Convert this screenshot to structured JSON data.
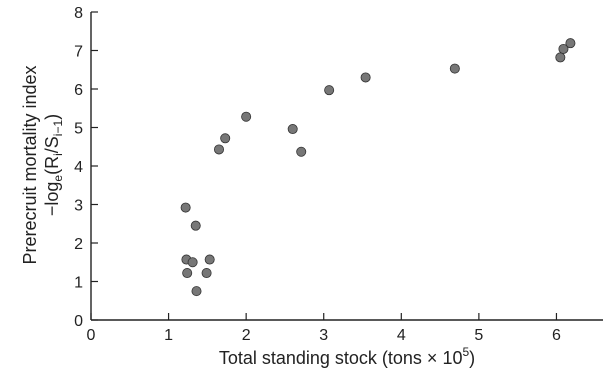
{
  "chart_data": {
    "type": "scatter",
    "title": "",
    "xlabel": "Total standing stock (tons × 10",
    "xlabel_exponent": "5",
    "xlabel_suffix": ")",
    "ylabel_line1": "Prerecruit mortality index",
    "ylabel_line2_prefix": "−log",
    "ylabel_line2_sub_e": "e",
    "ylabel_line2_mid": "(R",
    "ylabel_line2_sub_i": "i",
    "ylabel_line2_slash": "/S",
    "ylabel_line2_sub_i1": "i−1",
    "ylabel_line2_suffix": ")",
    "xlim": [
      0,
      6.6
    ],
    "ylim": [
      0,
      8
    ],
    "xticks": [
      0,
      1,
      2,
      3,
      4,
      5,
      6
    ],
    "yticks": [
      0,
      1,
      2,
      3,
      4,
      5,
      6,
      7,
      8
    ],
    "grid": false,
    "marker_color": "#777777",
    "points": [
      {
        "x": 1.22,
        "y": 2.92
      },
      {
        "x": 1.23,
        "y": 1.57
      },
      {
        "x": 1.24,
        "y": 1.22
      },
      {
        "x": 1.31,
        "y": 1.5
      },
      {
        "x": 1.35,
        "y": 2.45
      },
      {
        "x": 1.36,
        "y": 0.75
      },
      {
        "x": 1.49,
        "y": 1.22
      },
      {
        "x": 1.53,
        "y": 1.57
      },
      {
        "x": 1.65,
        "y": 4.43
      },
      {
        "x": 1.73,
        "y": 4.72
      },
      {
        "x": 2.0,
        "y": 5.28
      },
      {
        "x": 2.6,
        "y": 4.96
      },
      {
        "x": 2.71,
        "y": 4.37
      },
      {
        "x": 3.07,
        "y": 5.97
      },
      {
        "x": 3.54,
        "y": 6.3
      },
      {
        "x": 4.69,
        "y": 6.53
      },
      {
        "x": 6.05,
        "y": 6.82
      },
      {
        "x": 6.09,
        "y": 7.04
      },
      {
        "x": 6.18,
        "y": 7.19
      }
    ]
  }
}
